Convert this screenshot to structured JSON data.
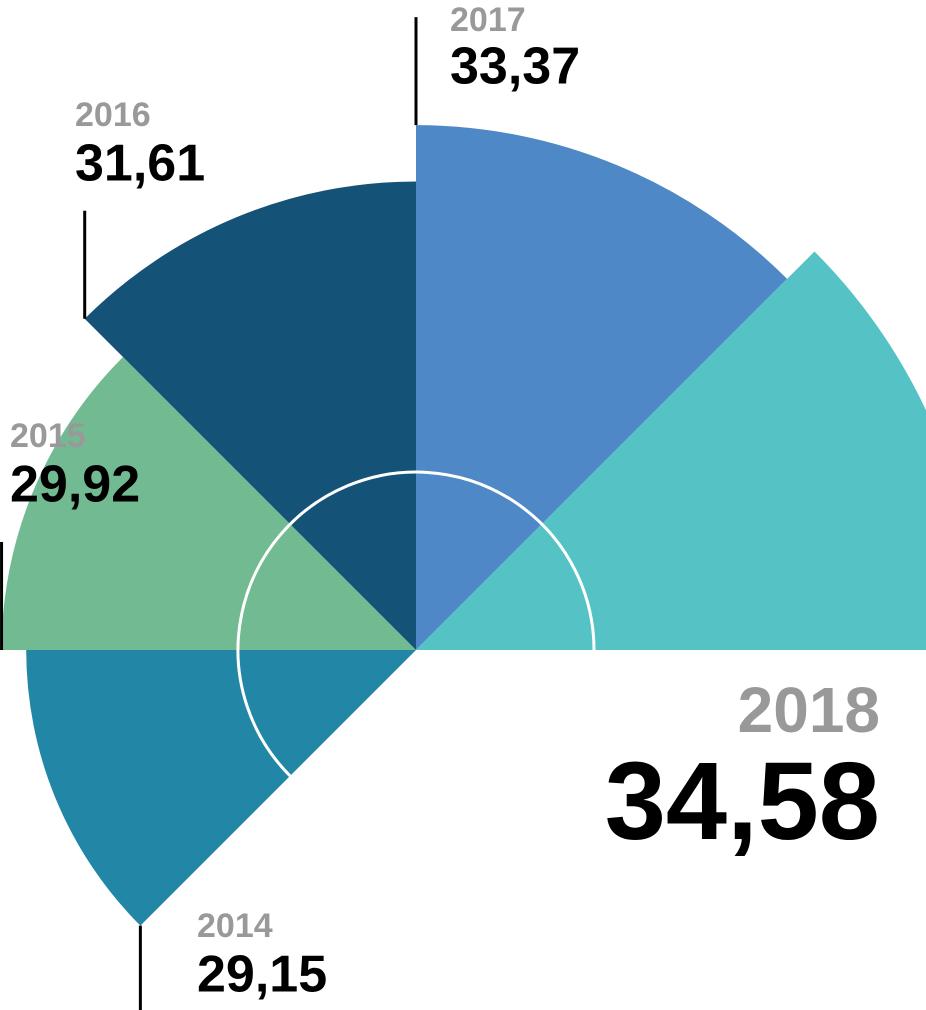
{
  "chart_data": {
    "type": "radial-bar",
    "categories": [
      "2014",
      "2015",
      "2016",
      "2017",
      "2018"
    ],
    "values": [
      29.15,
      29.92,
      31.61,
      33.37,
      34.58
    ],
    "value_labels": [
      "29,15",
      "29,92",
      "31,61",
      "33,37",
      "34,58"
    ],
    "colors": [
      "#2287a6",
      "#72bb92",
      "#145277",
      "#4f88c6",
      "#55c3c5"
    ]
  }
}
